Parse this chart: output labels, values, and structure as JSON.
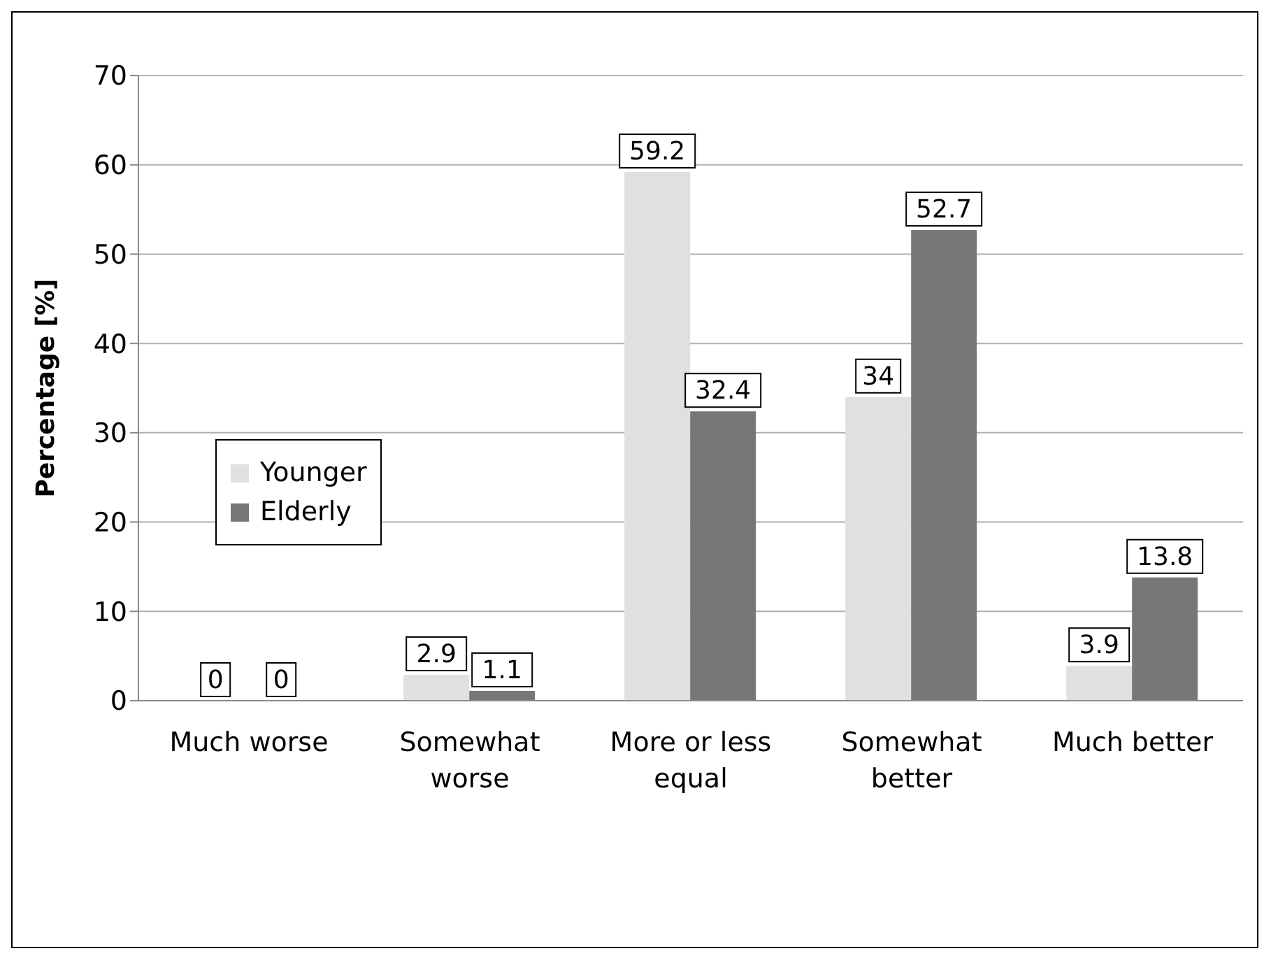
{
  "chart_data": {
    "type": "bar",
    "ylabel": "Percentage [%]",
    "categories": [
      "Much worse",
      "Somewhat worse",
      "More or less equal",
      "Somewhat better",
      "Much better"
    ],
    "series": [
      {
        "name": "Younger",
        "color": "#e0e0e0",
        "values": [
          0,
          2.9,
          59.2,
          34,
          3.9
        ]
      },
      {
        "name": "Elderly",
        "color": "#777777",
        "values": [
          0,
          1.1,
          32.4,
          52.7,
          13.8
        ]
      }
    ],
    "ylim": [
      0,
      70
    ],
    "yticks": [
      0,
      10,
      20,
      30,
      40,
      50,
      60,
      70
    ],
    "grid": "y",
    "legend": "left",
    "data_labels": true
  }
}
